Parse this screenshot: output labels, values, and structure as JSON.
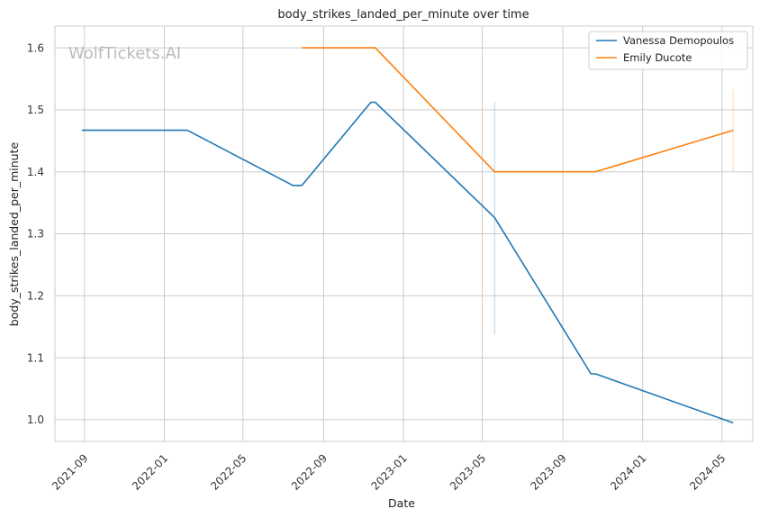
{
  "chart_data": {
    "type": "line",
    "title": "body_strikes_landed_per_minute over time",
    "xlabel": "Date",
    "ylabel": "body_strikes_landed_per_minute",
    "watermark": "WolfTickets.AI",
    "grid": true,
    "legend_position": "top-right",
    "xlim": [
      "2021-07-18",
      "2024-06-17"
    ],
    "ylim": [
      0.965,
      1.635
    ],
    "x_ticks": [
      "2021-09-01",
      "2022-01-01",
      "2022-05-01",
      "2022-09-01",
      "2023-01-01",
      "2023-05-01",
      "2023-09-01",
      "2024-01-01",
      "2024-05-01"
    ],
    "x_tick_labels": [
      "2021-09",
      "2022-01",
      "2022-05",
      "2022-09",
      "2023-01",
      "2023-05",
      "2023-09",
      "2024-01",
      "2024-05"
    ],
    "y_ticks": [
      1.0,
      1.1,
      1.2,
      1.3,
      1.4,
      1.5,
      1.6
    ],
    "y_tick_labels": [
      "1.0",
      "1.1",
      "1.2",
      "1.3",
      "1.4",
      "1.5",
      "1.6"
    ],
    "series": [
      {
        "name": "Vanessa Demopoulos",
        "color": "#1f77b4",
        "points": [
          {
            "x": "2021-08-28",
            "y": 1.467
          },
          {
            "x": "2022-02-05",
            "y": 1.467
          },
          {
            "x": "2022-07-16",
            "y": 1.378
          },
          {
            "x": "2022-07-30",
            "y": 1.378
          },
          {
            "x": "2022-11-12",
            "y": 1.512
          },
          {
            "x": "2022-11-19",
            "y": 1.512
          },
          {
            "x": "2023-05-20",
            "y": 1.326
          },
          {
            "x": "2023-10-14",
            "y": 1.074
          },
          {
            "x": "2023-10-21",
            "y": 1.074
          },
          {
            "x": "2024-05-18",
            "y": 0.995
          }
        ],
        "error_bars": [
          {
            "x": "2023-05-20",
            "low": 1.137,
            "high": 1.513
          }
        ]
      },
      {
        "name": "Emily Ducote",
        "color": "#ff7f0e",
        "points": [
          {
            "x": "2022-07-30",
            "y": 1.6
          },
          {
            "x": "2022-11-19",
            "y": 1.6
          },
          {
            "x": "2023-05-20",
            "y": 1.4
          },
          {
            "x": "2023-10-21",
            "y": 1.4
          },
          {
            "x": "2024-05-18",
            "y": 1.467
          }
        ],
        "error_bars": [
          {
            "x": "2024-05-18",
            "low": 1.401,
            "high": 1.533
          }
        ]
      }
    ]
  }
}
